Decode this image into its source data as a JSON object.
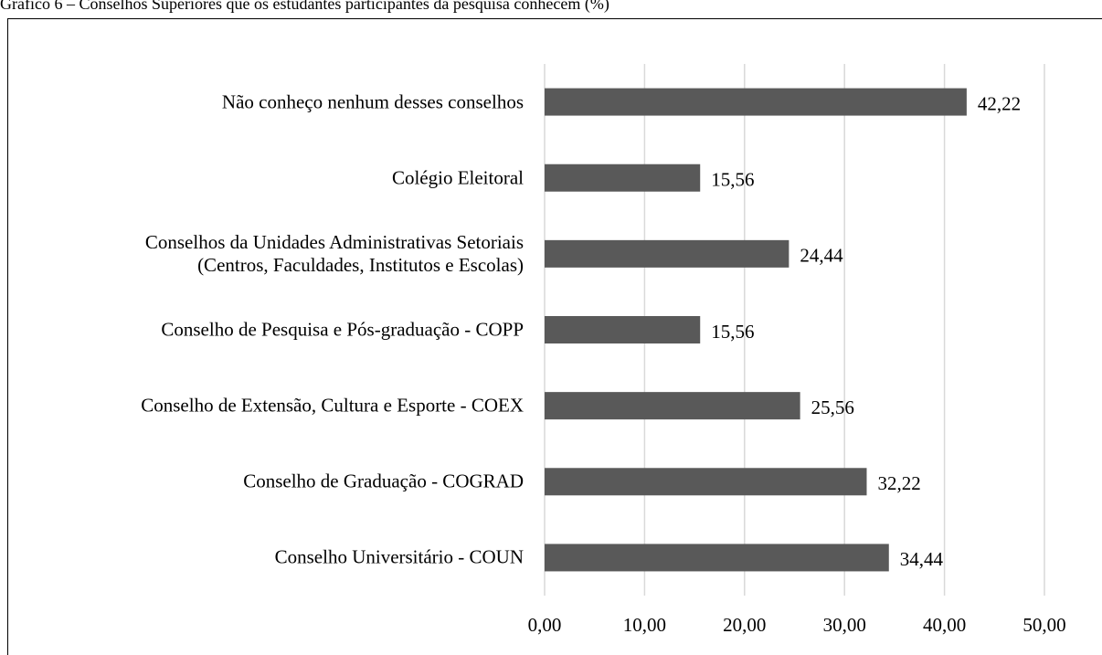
{
  "chart_data": {
    "type": "hbar",
    "title": "Gráfico 6 – Conselhos Superiores que os estudantes participantes da pesquisa conhecem (%)",
    "categories": [
      "Não conheço nenhum desses conselhos",
      "Colégio Eleitoral",
      "Conselhos da Unidades Administrativas Setoriais\n(Centros, Faculdades, Institutos e Escolas)",
      "Conselho de Pesquisa e Pós-graduação - COPP",
      "Conselho de Extensão, Cultura e Esporte - COEX",
      "Conselho de Graduação - COGRAD",
      "Conselho Universitário - COUN"
    ],
    "values": [
      42.22,
      15.56,
      24.44,
      15.56,
      25.56,
      32.22,
      34.44
    ],
    "value_labels": [
      "42,22",
      "15,56",
      "24,44",
      "15,56",
      "25,56",
      "32,22",
      "34,44"
    ],
    "color": "#595959",
    "xlim": [
      0,
      50
    ],
    "xticks": [
      {
        "value": 0,
        "label": "0,00"
      },
      {
        "value": 10,
        "label": "10,00"
      },
      {
        "value": 20,
        "label": "20,00"
      },
      {
        "value": 30,
        "label": "30,00"
      },
      {
        "value": 40,
        "label": "40,00"
      },
      {
        "value": 50,
        "label": "50,00"
      }
    ],
    "grid": true
  }
}
